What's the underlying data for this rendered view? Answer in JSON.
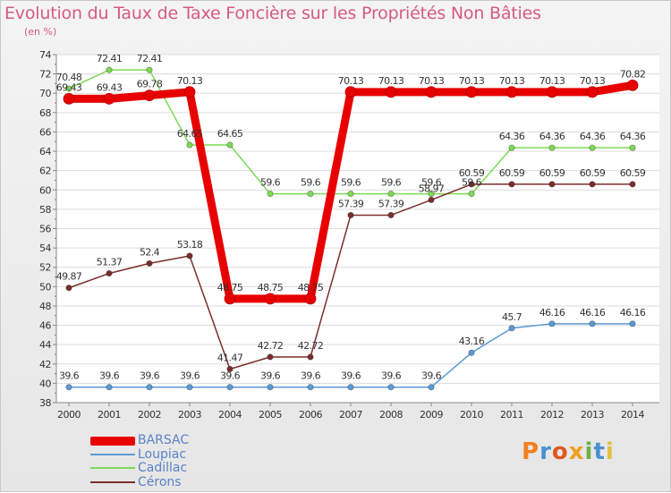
{
  "header": {
    "title": "Evolution du Taux de Taxe Foncière sur les Propriétés Non Bâties",
    "subtitle": "(en %)"
  },
  "logo": {
    "letters": [
      "P",
      "r",
      "o",
      "x",
      "i",
      "t",
      "i"
    ],
    "colors": [
      "#f08020",
      "#4a90d0",
      "#e05a20",
      "#f0a020",
      "#70b040",
      "#4a90d0",
      "#e0c040"
    ]
  },
  "chart_data": {
    "type": "line",
    "title": "Evolution du Taux de Taxe Foncière sur les Propriétés Non Bâties",
    "ylabel": "(en %)",
    "xlabel": "",
    "x": [
      "2000",
      "2001",
      "2002",
      "2003",
      "2004",
      "2005",
      "2006",
      "2007",
      "2008",
      "2009",
      "2010",
      "2011",
      "2012",
      "2013",
      "2014"
    ],
    "ylim": [
      38,
      74
    ],
    "yticks": [
      38,
      40,
      42,
      44,
      46,
      48,
      50,
      52,
      54,
      56,
      58,
      60,
      62,
      64,
      66,
      68,
      70,
      72,
      74
    ],
    "grid": "horizontal",
    "legend_position": "bottom-left",
    "series": [
      {
        "name": "BARSAC",
        "color": "#e80000",
        "emphasis": true,
        "values": [
          69.43,
          69.43,
          69.78,
          70.13,
          48.75,
          48.75,
          48.75,
          70.13,
          70.13,
          70.13,
          70.13,
          70.13,
          70.13,
          70.13,
          70.82
        ],
        "labels": [
          "69.43",
          "69.43",
          "69.78",
          "70.13",
          "48.75",
          "48.75",
          "48.75",
          "70.13",
          "70.13",
          "70.13",
          "70.13",
          "70.13",
          "70.13",
          "70.13",
          "70.82"
        ]
      },
      {
        "name": "Loupiac",
        "color": "#5b9bd5",
        "values": [
          39.6,
          39.6,
          39.6,
          39.6,
          39.6,
          39.6,
          39.6,
          39.6,
          39.6,
          39.6,
          43.16,
          45.7,
          46.16,
          46.16,
          46.16
        ],
        "labels": [
          "39.6",
          "39.6",
          "39.6",
          "39.6",
          "39.6",
          "39.6",
          "39.6",
          "39.6",
          "39.6",
          "39.6",
          "43.16",
          "45.7",
          "46.16",
          "46.16",
          "46.16"
        ]
      },
      {
        "name": "Cadillac",
        "color": "#7ed957",
        "values": [
          70.48,
          72.41,
          72.41,
          64.65,
          64.65,
          59.6,
          59.6,
          59.6,
          59.6,
          59.6,
          59.6,
          64.36,
          64.36,
          64.36,
          64.36
        ],
        "labels": [
          "70.48",
          "72.41",
          "72.41",
          "64.65",
          "64.65",
          "59.6",
          "59.6",
          "59.6",
          "59.6",
          "59.6",
          "59.6",
          "64.36",
          "64.36",
          "64.36",
          "64.36"
        ]
      },
      {
        "name": "Cérons",
        "color": "#7a2e2e",
        "values": [
          49.87,
          51.37,
          52.4,
          53.18,
          41.47,
          42.72,
          42.72,
          57.39,
          57.39,
          58.97,
          60.59,
          60.59,
          60.59,
          60.59,
          60.59
        ],
        "labels": [
          "49.87",
          "51.37",
          "52.4",
          "53.18",
          "41.47",
          "42.72",
          "42.72",
          "57.39",
          "57.39",
          "58.97",
          "60.59",
          "60.59",
          "60.59",
          "60.59",
          "60.59"
        ]
      }
    ]
  }
}
